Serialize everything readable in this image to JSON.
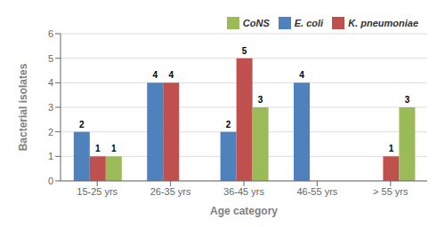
{
  "chart_data": {
    "type": "bar",
    "xlabel": "Age category",
    "ylabel": "Bacterial isolates",
    "categories": [
      "15-25 yrs",
      "26-35 yrs",
      "36-45 yrs",
      "46-55 yrs",
      "> 55 yrs"
    ],
    "series": [
      {
        "name": "E. coli",
        "color": "#4F81BD",
        "values": [
          2,
          4,
          2,
          4,
          0
        ]
      },
      {
        "name": "K. pneumoniae",
        "color": "#C0504D",
        "values": [
          1,
          4,
          5,
          0,
          1
        ]
      },
      {
        "name": "CoNS",
        "color": "#9BBB59",
        "values": [
          1,
          0,
          3,
          0,
          3
        ]
      }
    ],
    "ylim": [
      0,
      6
    ],
    "yticks": [
      0,
      1,
      2,
      3,
      4,
      5,
      6
    ],
    "grid": true,
    "legend": "upper right",
    "data_labels": true
  }
}
